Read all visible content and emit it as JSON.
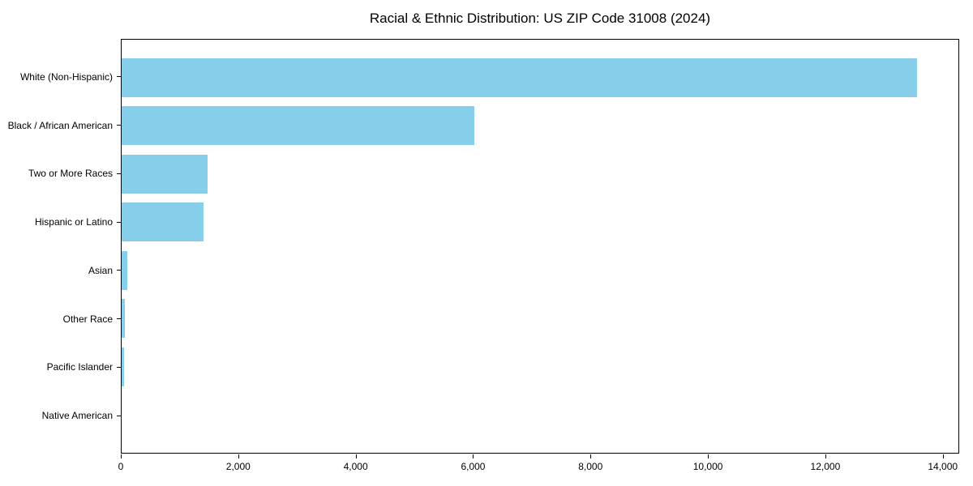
{
  "figure": {
    "background": "#ffffff",
    "text_color": "#000000"
  },
  "chart_data": {
    "type": "bar",
    "orientation": "horizontal",
    "title": "Racial & Ethnic Distribution: US ZIP Code 31008 (2024)",
    "xlabel": "",
    "ylabel": "",
    "categories": [
      "White (Non-Hispanic)",
      "Black / African American",
      "Two or More Races",
      "Hispanic or Latino",
      "Asian",
      "Other Race",
      "Pacific Islander",
      "Native American"
    ],
    "values": [
      13580,
      6020,
      1460,
      1400,
      90,
      55,
      38,
      0
    ],
    "xlim": [
      0,
      14280
    ],
    "x_ticks": [
      0,
      2000,
      4000,
      6000,
      8000,
      10000,
      12000,
      14000
    ],
    "x_tick_labels": [
      "0",
      "2,000",
      "4,000",
      "6,000",
      "8,000",
      "10,000",
      "12,000",
      "14,000"
    ],
    "bar_color": "#87CEEB",
    "grid": false,
    "legend": null
  }
}
